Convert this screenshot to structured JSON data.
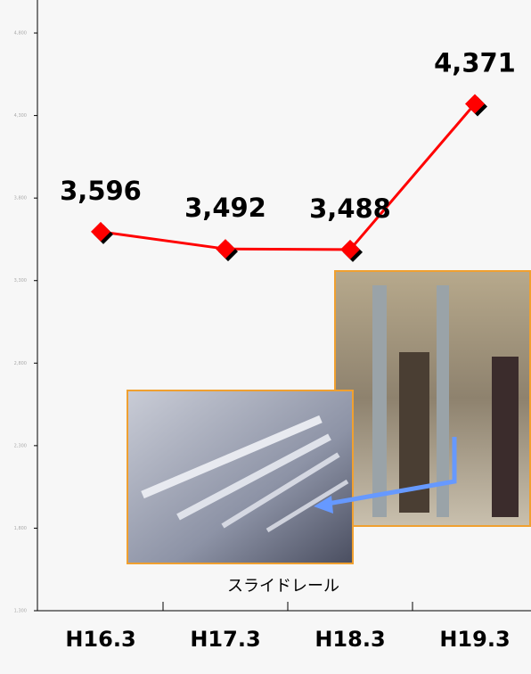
{
  "chart_data": {
    "type": "line",
    "categories": [
      "H16.3",
      "H17.3",
      "H18.3",
      "H19.3"
    ],
    "values": [
      3596,
      3492,
      3488,
      4371
    ],
    "value_labels": [
      "3,596",
      "3,492",
      "3,488",
      "4,371"
    ],
    "color": "#ff0000",
    "ylim": [
      1300,
      5000
    ],
    "yticks": [
      {
        "value": 1300,
        "label": "1,300"
      },
      {
        "value": 1800,
        "label": "1,800"
      },
      {
        "value": 2300,
        "label": "2,300"
      },
      {
        "value": 2800,
        "label": "2,800"
      },
      {
        "value": 3300,
        "label": "3,300"
      },
      {
        "value": 3800,
        "label": "3,800"
      },
      {
        "value": 4300,
        "label": "4,300"
      },
      {
        "value": 4800,
        "label": "4,800"
      }
    ],
    "annotation": "スライドレール"
  }
}
